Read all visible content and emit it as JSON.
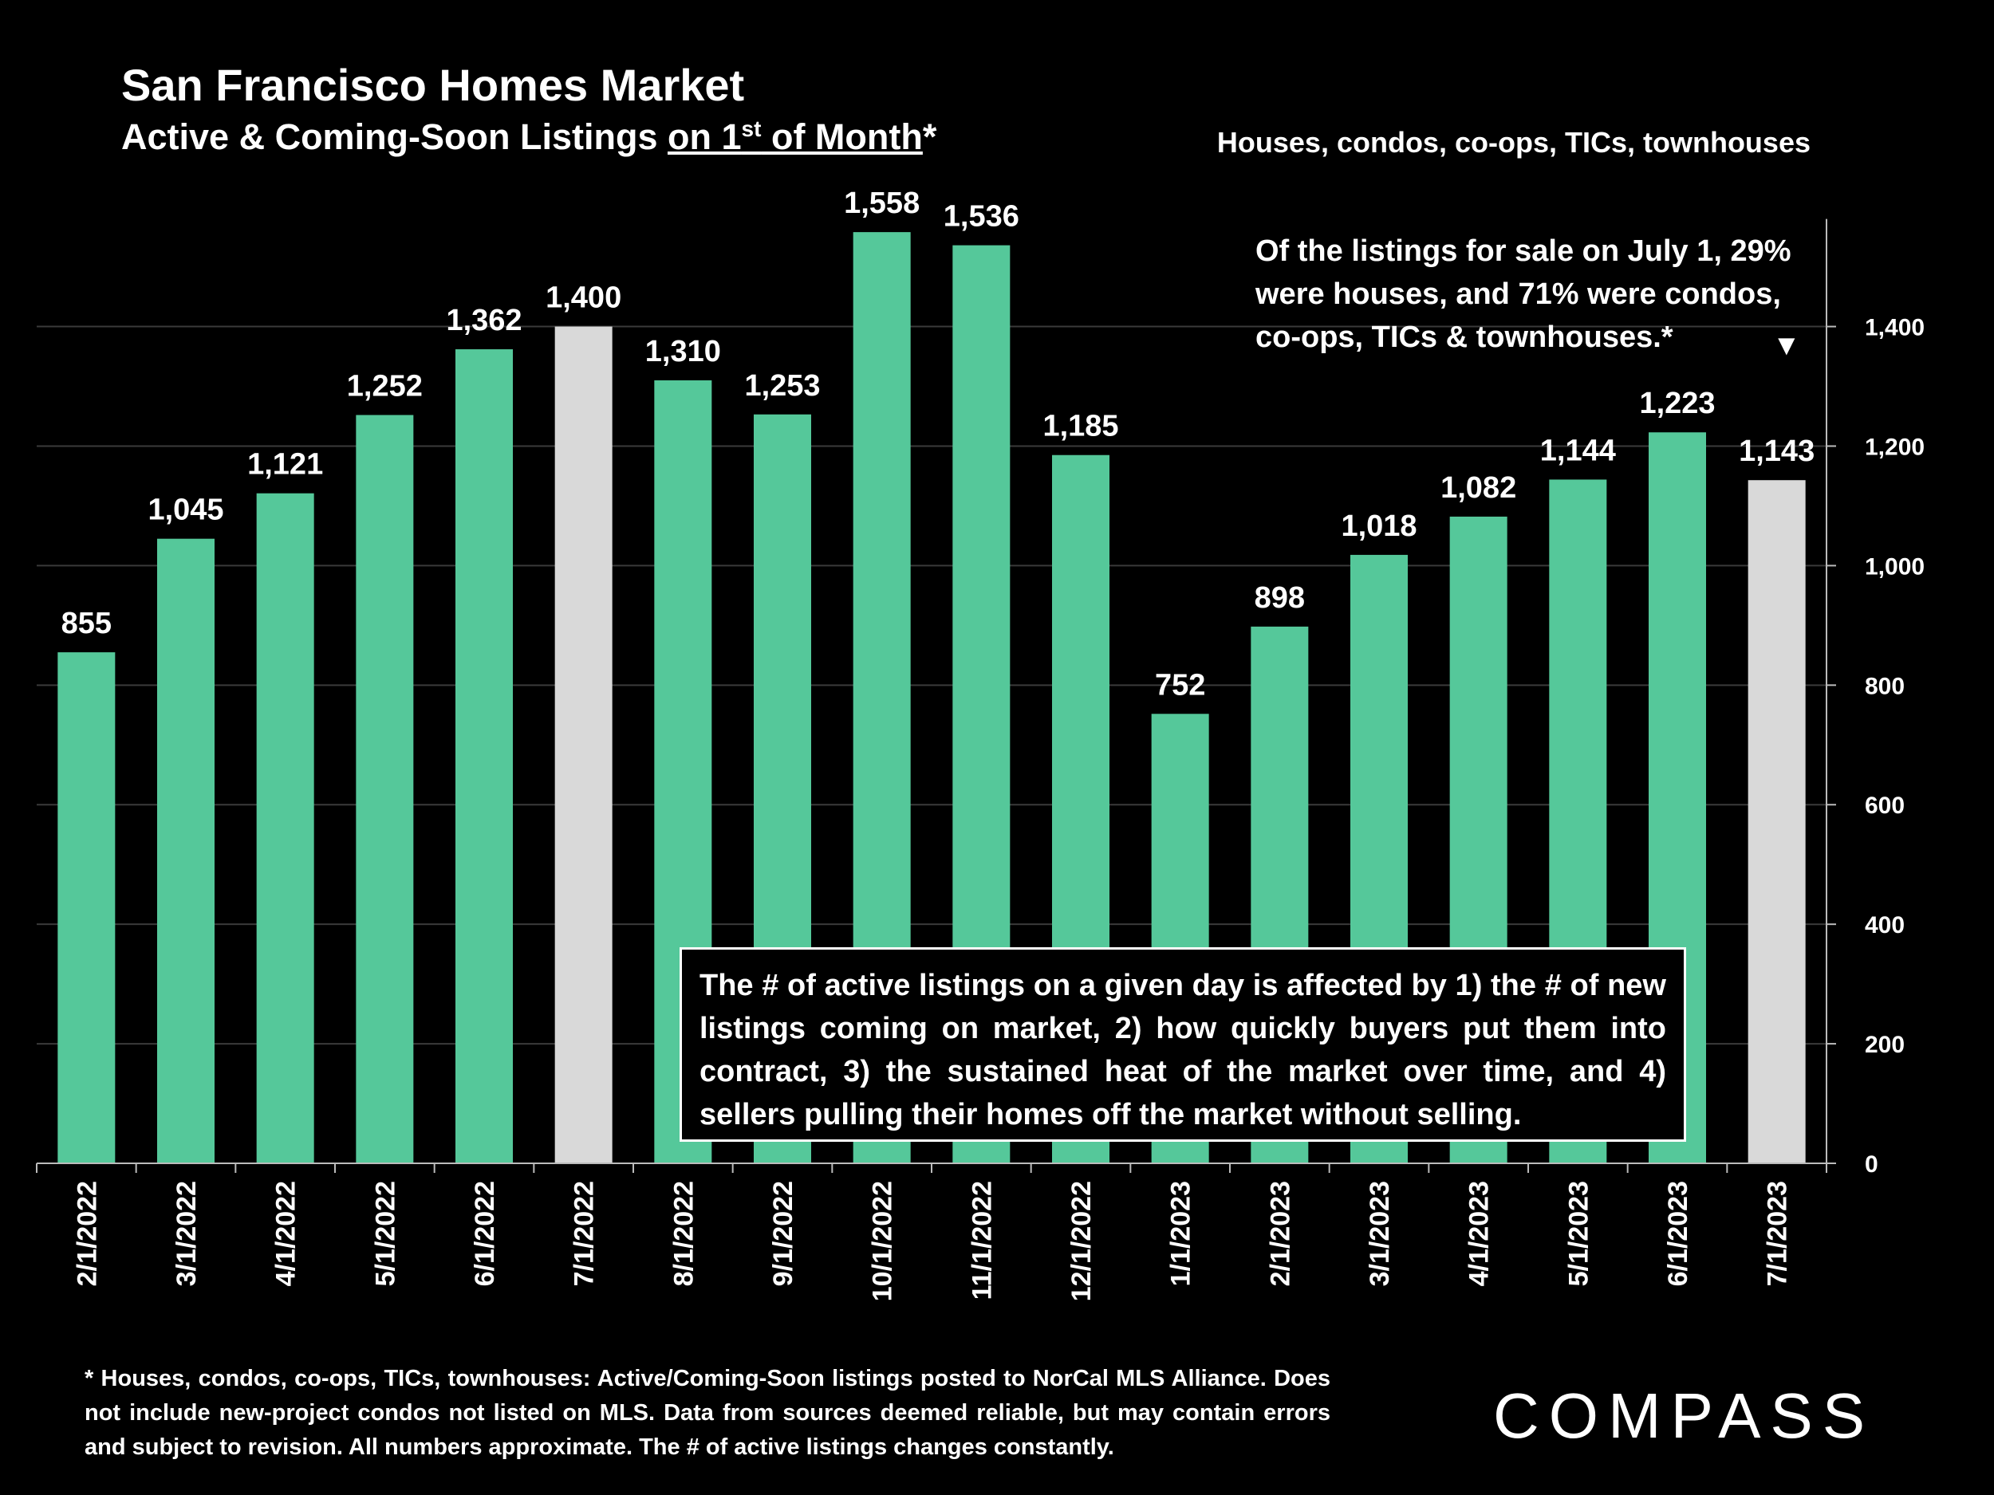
{
  "header": {
    "title": "San Francisco Homes Market",
    "subtitle_pre": "Active & Coming-Soon Listings ",
    "subtitle_underlined_a": "on 1",
    "subtitle_sup": "st",
    "subtitle_underlined_b": " of Month",
    "subtitle_post": "*",
    "scope": "Houses, condos, co-ops, TICs, townhouses"
  },
  "annotations": {
    "top_note": "Of the listings for sale on July 1, 29% were houses, and 71% were condos, co-ops, TICs & townhouses.*",
    "top_note_marker": "▼",
    "box_note": "The # of active listings on a given day is affected by 1) the # of new listings coming on market, 2) how quickly buyers put them into contract, 3) the sustained heat of the market over time, and 4) sellers pulling their homes off the market without selling."
  },
  "footnote": "* Houses, condos, co-ops, TICs, townhouses: Active/Coming-Soon listings posted to NorCal MLS Alliance. Does not include new-project condos not listed on MLS. Data from sources deemed reliable, but may contain errors and subject to revision. All numbers approximate. The # of active listings changes constantly.",
  "logo": "COMPASS",
  "colors": {
    "bar": "#55c89a",
    "highlight": "#d9d9d9",
    "background": "#000000",
    "grid": "#3a3a3a"
  },
  "chart_data": {
    "type": "bar",
    "title": "San Francisco Homes Market",
    "xlabel": "",
    "ylabel": "",
    "categories": [
      "2/1/2022",
      "3/1/2022",
      "4/1/2022",
      "5/1/2022",
      "6/1/2022",
      "7/1/2022",
      "8/1/2022",
      "9/1/2022",
      "10/1/2022",
      "11/1/2022",
      "12/1/2022",
      "1/1/2023",
      "2/1/2023",
      "3/1/2023",
      "4/1/2023",
      "5/1/2023",
      "6/1/2023",
      "7/1/2023"
    ],
    "values": [
      855,
      1045,
      1121,
      1252,
      1362,
      1400,
      1310,
      1253,
      1558,
      1536,
      1185,
      752,
      898,
      1018,
      1082,
      1144,
      1223,
      1143
    ],
    "value_labels": [
      "855",
      "1,045",
      "1,121",
      "1,252",
      "1,362",
      "1,400",
      "1,310",
      "1,253",
      "1,558",
      "1,536",
      "1,185",
      "752",
      "898",
      "1,018",
      "1,082",
      "1,144",
      "1,223",
      "1,143"
    ],
    "highlighted": [
      "7/1/2022",
      "7/1/2023"
    ],
    "ylim": [
      0,
      1600
    ],
    "yticks": [
      0,
      200,
      400,
      600,
      800,
      1000,
      1200,
      1400
    ],
    "ytick_labels": [
      "0",
      "200",
      "400",
      "600",
      "800",
      "1,000",
      "1,200",
      "1,400"
    ],
    "y_axis_side": "right",
    "grid": true
  }
}
